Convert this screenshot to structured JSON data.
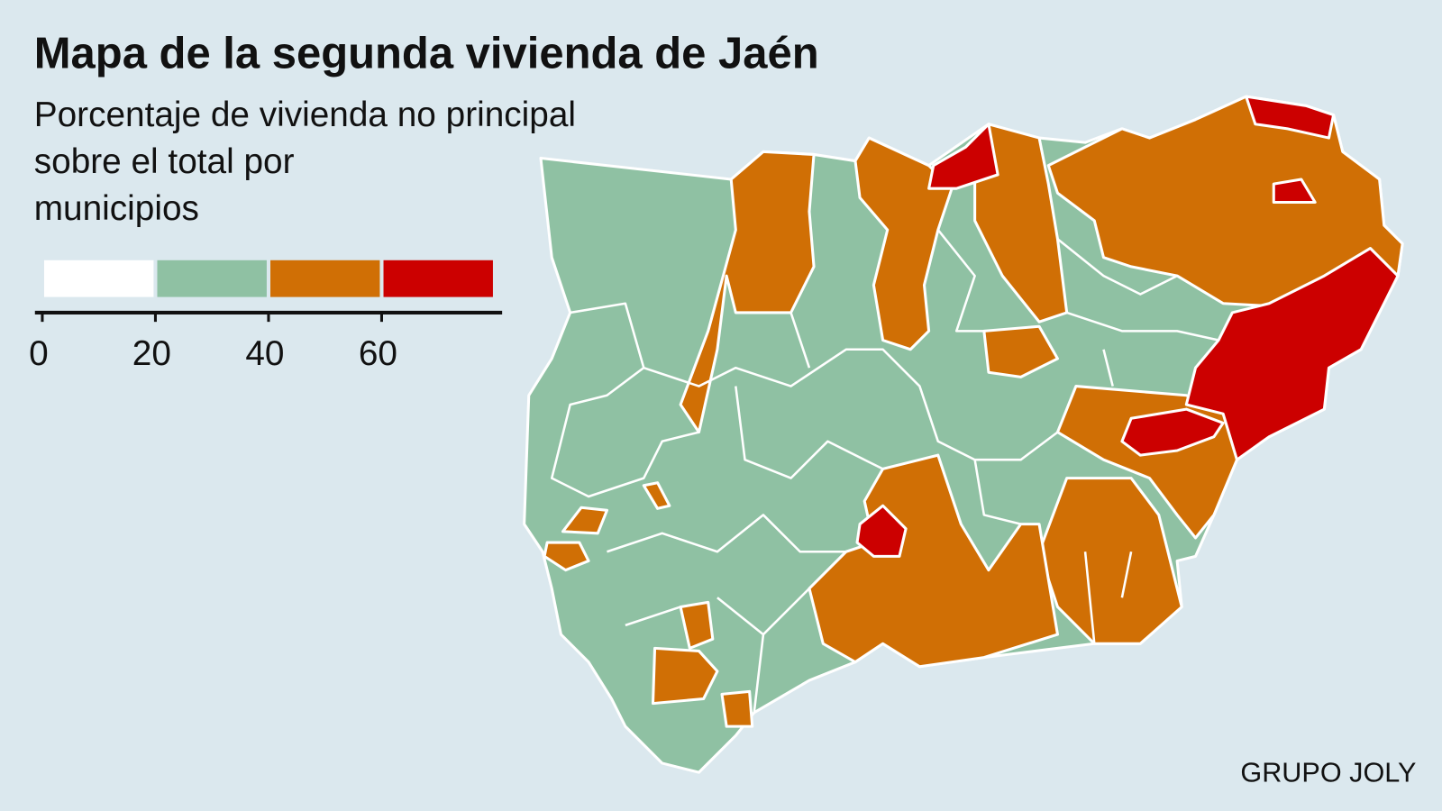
{
  "chart_data": {
    "type": "map",
    "title": "Mapa de la segunda vivienda de Jaén",
    "subtitle": [
      "Porcentaje de vivienda no principal",
      "sobre el total por",
      "municipios"
    ],
    "legend": {
      "colors": [
        "#ffffff",
        "#8fc1a3",
        "#d06f05",
        "#cc0000"
      ],
      "ticks": [
        0,
        20,
        40,
        60
      ],
      "range": [
        0,
        80
      ]
    },
    "source": "GRUPO JOLY"
  }
}
